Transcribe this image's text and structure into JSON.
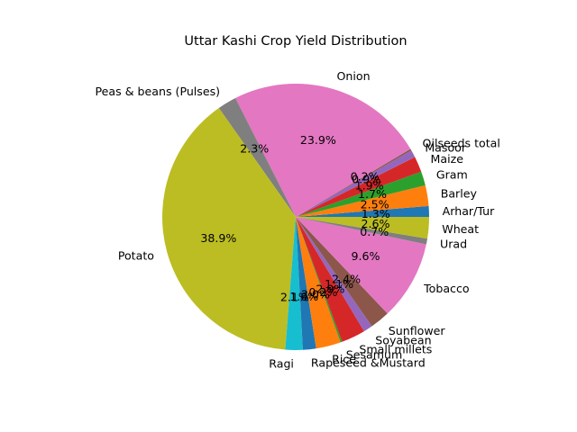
{
  "chart_data": {
    "type": "pie",
    "title": "Uttar Kashi Crop Yield Distribution",
    "start_angle_deg": 0,
    "direction": "counterclockwise",
    "slices": [
      {
        "label": "Arhar/Tur",
        "value": 1.3,
        "pct_label": "1.3%",
        "color": "#1f77b4"
      },
      {
        "label": "Barley",
        "value": 2.5,
        "pct_label": "2.5%",
        "color": "#ff7f0e"
      },
      {
        "label": "Gram",
        "value": 1.7,
        "pct_label": "1.7%",
        "color": "#2ca02c"
      },
      {
        "label": "Maize",
        "value": 1.9,
        "pct_label": "1.9%",
        "color": "#d62728"
      },
      {
        "label": "Masoor",
        "value": 0.9,
        "pct_label": "0.9%",
        "color": "#9467bd"
      },
      {
        "label": "Oilseeds total",
        "value": 0.2,
        "pct_label": "0.2%",
        "color": "#8c564b"
      },
      {
        "label": "Onion",
        "value": 23.9,
        "pct_label": "23.9%",
        "color": "#e377c2"
      },
      {
        "label": "Peas & beans (Pulses)",
        "value": 2.3,
        "pct_label": "2.3%",
        "color": "#7f7f7f"
      },
      {
        "label": "Potato",
        "value": 38.9,
        "pct_label": "38.9%",
        "color": "#bcbd22"
      },
      {
        "label": "Ragi",
        "value": 2.1,
        "pct_label": "2.1%",
        "color": "#17becf"
      },
      {
        "label": "Rapeseed &Mustard",
        "value": 1.6,
        "pct_label": "1.6%",
        "color": "#1f77b4"
      },
      {
        "label": "Rice",
        "value": 3.0,
        "pct_label": "3.0%",
        "color": "#ff7f0e"
      },
      {
        "label": "Sesamum",
        "value": 0.2,
        "pct_label": "0.2%",
        "color": "#2ca02c"
      },
      {
        "label": "Small millets",
        "value": 2.9,
        "pct_label": "2.9%",
        "color": "#d62728"
      },
      {
        "label": "Soyabean",
        "value": 1.1,
        "pct_label": "1.1%",
        "color": "#9467bd"
      },
      {
        "label": "Sunflower",
        "value": 2.4,
        "pct_label": "2.4%",
        "color": "#8c564b"
      },
      {
        "label": "Tobacco",
        "value": 9.6,
        "pct_label": "9.6%",
        "color": "#e377c2"
      },
      {
        "label": "Urad",
        "value": 0.7,
        "pct_label": "0.7%",
        "color": "#7f7f7f"
      },
      {
        "label": "Wheat",
        "value": 2.6,
        "pct_label": "2.6%",
        "color": "#bcbd22"
      }
    ]
  }
}
